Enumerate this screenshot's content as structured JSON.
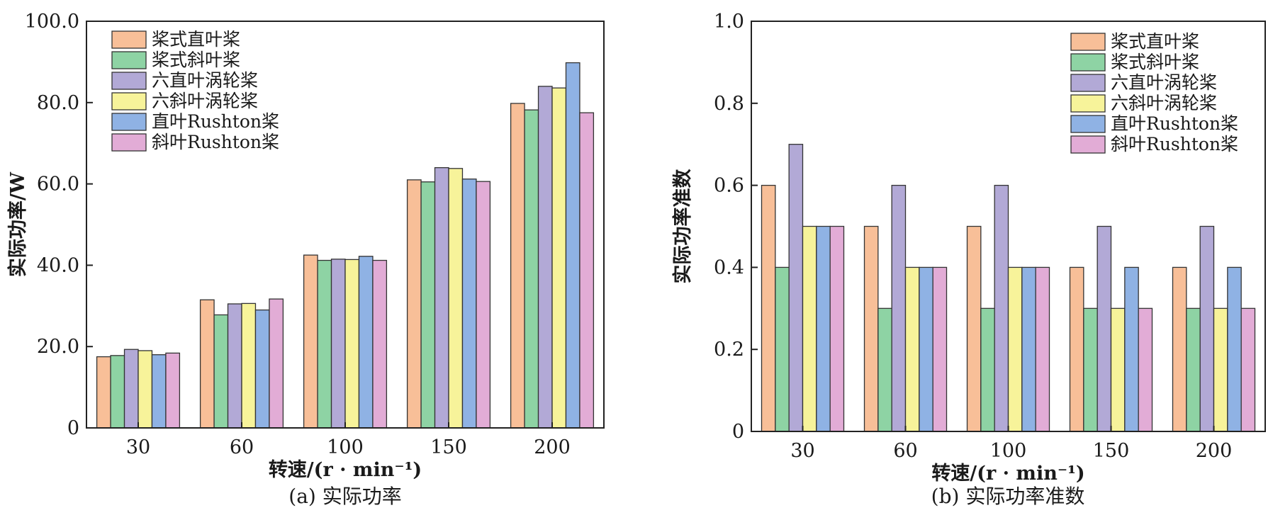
{
  "chart_data": [
    {
      "type": "bar",
      "caption": "(a) 实际功率",
      "xlabel": "转速/(r · min⁻¹)",
      "ylabel": "实际功率/W",
      "categories": [
        "30",
        "60",
        "100",
        "150",
        "200"
      ],
      "ylim": [
        0,
        100
      ],
      "yticks": [
        "0",
        "20.0",
        "40.0",
        "60.0",
        "80.0",
        "100.0"
      ],
      "grid": false,
      "legend_position": "top-left",
      "series": [
        {
          "name": "桨式直叶桨",
          "color": "#f8bf98",
          "values": [
            17.5,
            31.5,
            42.5,
            61.0,
            79.8
          ]
        },
        {
          "name": "桨式斜叶桨",
          "color": "#8ed3a4",
          "values": [
            17.8,
            27.8,
            41.2,
            60.5,
            78.2
          ]
        },
        {
          "name": "六直叶涡轮桨",
          "color": "#b2a9d6",
          "values": [
            19.3,
            30.5,
            41.5,
            64.0,
            84.0
          ]
        },
        {
          "name": "六斜叶涡轮桨",
          "color": "#f7f39a",
          "values": [
            19.0,
            30.6,
            41.4,
            63.8,
            83.6
          ]
        },
        {
          "name": "直叶Rushton桨",
          "color": "#8fb2e4",
          "values": [
            18.0,
            29.0,
            42.2,
            61.2,
            89.8
          ]
        },
        {
          "name": "斜叶Rushton桨",
          "color": "#e2acd6",
          "values": [
            18.4,
            31.7,
            41.2,
            60.6,
            77.5
          ]
        }
      ]
    },
    {
      "type": "bar",
      "caption": "(b) 实际功率准数",
      "xlabel": "转速/(r · min⁻¹)",
      "ylabel": "实际功率准数",
      "categories": [
        "30",
        "60",
        "100",
        "150",
        "200"
      ],
      "ylim": [
        0,
        1.0
      ],
      "yticks": [
        "0",
        "0.2",
        "0.4",
        "0.6",
        "0.8",
        "1.0"
      ],
      "grid": false,
      "legend_position": "top-right",
      "series": [
        {
          "name": "桨式直叶桨",
          "color": "#f8bf98",
          "values": [
            0.6,
            0.5,
            0.5,
            0.4,
            0.4
          ]
        },
        {
          "name": "桨式斜叶桨",
          "color": "#8ed3a4",
          "values": [
            0.4,
            0.3,
            0.3,
            0.3,
            0.3
          ]
        },
        {
          "name": "六直叶涡轮桨",
          "color": "#b2a9d6",
          "values": [
            0.7,
            0.6,
            0.6,
            0.5,
            0.5
          ]
        },
        {
          "name": "六斜叶涡轮桨",
          "color": "#f7f39a",
          "values": [
            0.5,
            0.4,
            0.4,
            0.3,
            0.3
          ]
        },
        {
          "name": "直叶Rushton桨",
          "color": "#8fb2e4",
          "values": [
            0.5,
            0.4,
            0.4,
            0.4,
            0.4
          ]
        },
        {
          "name": "斜叶Rushton桨",
          "color": "#e2acd6",
          "values": [
            0.5,
            0.4,
            0.4,
            0.3,
            0.3
          ]
        }
      ]
    }
  ]
}
